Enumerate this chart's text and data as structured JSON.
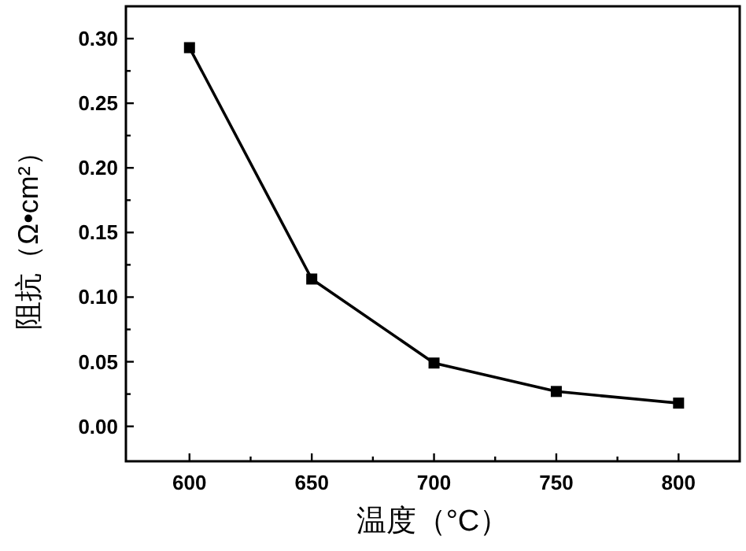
{
  "chart_data": {
    "type": "line",
    "xlabel": "温度（°C）",
    "ylabel": "阻抗（Ω•cm²）",
    "x": [
      600,
      650,
      700,
      750,
      800
    ],
    "series": [
      {
        "color": "#000000",
        "values": [
          0.293,
          0.114,
          0.049,
          0.027,
          0.018
        ]
      }
    ],
    "xlim": [
      574,
      825
    ],
    "ylim": [
      -0.027,
      0.325
    ],
    "xticks": [
      600,
      {
        "value": 625,
        "label": null
      },
      650,
      {
        "value": 675,
        "label": null
      },
      700,
      {
        "value": 725,
        "label": null
      },
      750,
      {
        "value": 775,
        "label": null
      },
      800
    ],
    "yticks": [
      {
        "value": 0,
        "label": "0.00"
      },
      {
        "value": 0.025,
        "label": null
      },
      {
        "value": 0.05,
        "label": "0.05"
      },
      {
        "value": 0.075,
        "label": null
      },
      {
        "value": 0.1,
        "label": "0.10"
      },
      {
        "value": 0.125,
        "label": null
      },
      {
        "value": 0.15,
        "label": "0.15"
      },
      {
        "value": 0.175,
        "label": null
      },
      {
        "value": 0.2,
        "label": "0.20"
      },
      {
        "value": 0.225,
        "label": null
      },
      {
        "value": 0.25,
        "label": "0.25"
      },
      {
        "value": 0.275,
        "label": null
      },
      {
        "value": 0.3,
        "label": "0.30"
      }
    ],
    "marker": "square",
    "line_style": "solid",
    "grid": false
  }
}
